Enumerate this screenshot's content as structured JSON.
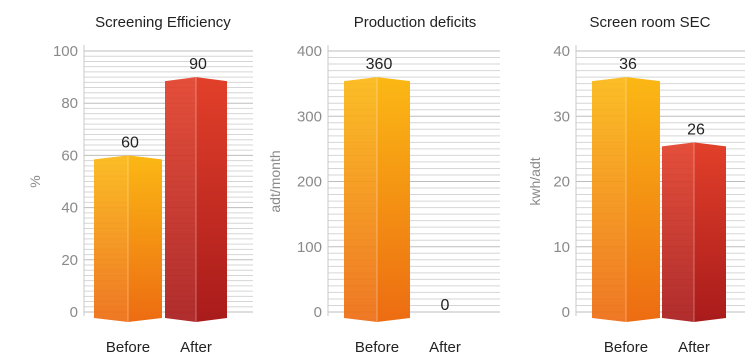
{
  "colors": {
    "before_light": "#fbb814",
    "before_dark": "#ed6c12",
    "after_light": "#e2402a",
    "after_dark": "#a91b1b"
  },
  "chart_data": [
    {
      "type": "bar",
      "title": "Screening Efficiency",
      "ylabel": "%",
      "categories": [
        "Before",
        "After"
      ],
      "values": [
        60,
        90
      ],
      "data_labels": [
        "60",
        "90"
      ],
      "yticks": [
        "0",
        "20",
        "40",
        "60",
        "80",
        "100"
      ],
      "ylim": [
        0,
        100
      ],
      "grid": true,
      "legend": "none"
    },
    {
      "type": "bar",
      "title": "Production deficits",
      "ylabel": "adt/month",
      "categories": [
        "Before",
        "After"
      ],
      "values": [
        360,
        0
      ],
      "data_labels": [
        "360",
        "0"
      ],
      "yticks": [
        "0",
        "100",
        "200",
        "300",
        "400"
      ],
      "ylim": [
        0,
        400
      ],
      "grid": true,
      "legend": "none"
    },
    {
      "type": "bar",
      "title": "Screen room SEC",
      "ylabel": "kwh/adt",
      "categories": [
        "Before",
        "After"
      ],
      "values": [
        36,
        26
      ],
      "data_labels": [
        "36",
        "26"
      ],
      "yticks": [
        "0",
        "10",
        "20",
        "30",
        "40"
      ],
      "ylim": [
        0,
        40
      ],
      "grid": true,
      "legend": "none"
    }
  ]
}
